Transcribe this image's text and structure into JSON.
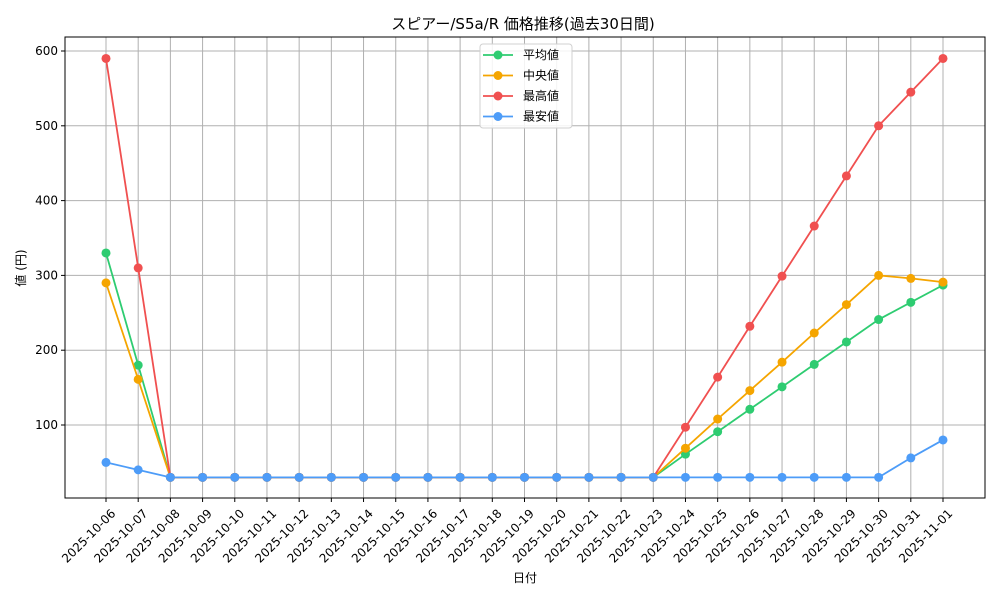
{
  "chart_data": {
    "type": "line",
    "title": "スピアー/S5a/R 価格推移(過去30日間)",
    "xlabel": "日付",
    "ylabel": "値 (円)",
    "ylim": [
      0,
      620
    ],
    "yticks": [
      100,
      200,
      300,
      400,
      500,
      600
    ],
    "grid": true,
    "legend_position": "upper center",
    "x": [
      "2025-10-06",
      "2025-10-07",
      "2025-10-08",
      "2025-10-09",
      "2025-10-10",
      "2025-10-11",
      "2025-10-12",
      "2025-10-13",
      "2025-10-14",
      "2025-10-15",
      "2025-10-16",
      "2025-10-17",
      "2025-10-18",
      "2025-10-19",
      "2025-10-20",
      "2025-10-21",
      "2025-10-22",
      "2025-10-23",
      "2025-10-24",
      "2025-10-25",
      "2025-10-26",
      "2025-10-27",
      "2025-10-28",
      "2025-10-29",
      "2025-10-30",
      "2025-10-31",
      "2025-11-01"
    ],
    "series": [
      {
        "name": "平均値",
        "color": "#2ecc71",
        "values": [
          330,
          180,
          30,
          30,
          30,
          30,
          30,
          30,
          30,
          30,
          30,
          30,
          30,
          30,
          30,
          30,
          30,
          30,
          61,
          91,
          121,
          151,
          181,
          211,
          241,
          264,
          287
        ]
      },
      {
        "name": "中央値",
        "color": "#f5a500",
        "values": [
          290,
          161,
          30,
          30,
          30,
          30,
          30,
          30,
          30,
          30,
          30,
          30,
          30,
          30,
          30,
          30,
          30,
          30,
          69,
          108,
          146,
          184,
          223,
          261,
          300,
          296,
          291
        ]
      },
      {
        "name": "最高値",
        "color": "#f05050",
        "values": [
          590,
          310,
          30,
          30,
          30,
          30,
          30,
          30,
          30,
          30,
          30,
          30,
          30,
          30,
          30,
          30,
          30,
          30,
          97,
          164,
          232,
          299,
          366,
          433,
          500,
          545,
          590
        ]
      },
      {
        "name": "最安値",
        "color": "#4d9cf8",
        "values": [
          50,
          40,
          30,
          30,
          30,
          30,
          30,
          30,
          30,
          30,
          30,
          30,
          30,
          30,
          30,
          30,
          30,
          30,
          30,
          30,
          30,
          30,
          30,
          30,
          30,
          56,
          80
        ]
      }
    ]
  }
}
